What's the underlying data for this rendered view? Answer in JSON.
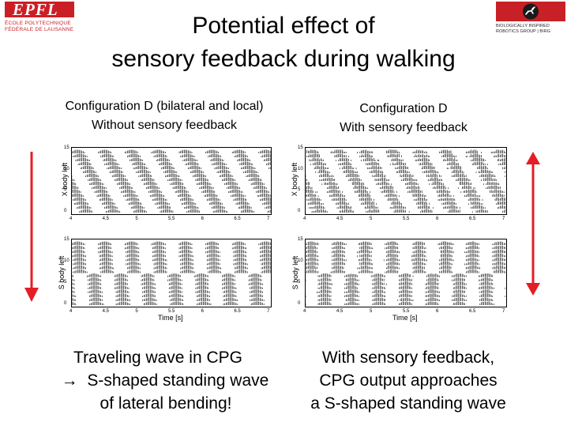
{
  "logos": {
    "left": {
      "mark": "EPFL",
      "line1": "ÉCOLE POLYTECHNIQUE",
      "line2": "FÉDÉRALE DE LAUSANNE"
    },
    "right": {
      "line1": "BIOLOGICALLY INSPIRED",
      "line2": "ROBOTICS GROUP | BIRG"
    }
  },
  "title": {
    "line1": "Potential effect of",
    "line2": "sensory feedback during walking"
  },
  "left_panel": {
    "caption_line1": "Configuration D (bilateral and local)",
    "caption_line2": "Without sensory feedback",
    "top_ylabel": "X body left",
    "bottom_ylabel": "S body left",
    "xlabel": "Time [s]",
    "top_yticks": [
      "15",
      "10",
      "5",
      "0"
    ],
    "top_xticks": [
      "4",
      "4.5",
      "5",
      "5.5",
      "6",
      "6.5",
      "7"
    ],
    "bottom_yticks": [
      "15",
      "10",
      "5",
      "0"
    ],
    "bottom_xticks": [
      "4",
      "4.5",
      "5",
      "5.5",
      "6",
      "6.5",
      "7"
    ]
  },
  "right_panel": {
    "caption_line1": "Configuration D",
    "caption_line2": "With sensory feedback",
    "top_ylabel": "X body left",
    "bottom_ylabel": "S body left",
    "xlabel": "Time [s]",
    "top_yticks": [
      "15",
      "10",
      "5",
      "0"
    ],
    "top_xticks": [
      "4",
      "4.5",
      "5",
      "5.5",
      "6",
      "6.5",
      "7"
    ],
    "bottom_yticks": [
      "15",
      "10",
      "5",
      "0"
    ],
    "bottom_xticks": [
      "4",
      "4.5",
      "5",
      "5.5",
      "6",
      "6.5",
      "7"
    ]
  },
  "bottom_left": {
    "line1": "Traveling wave in CPG",
    "line2": "S-shaped standing wave",
    "line3": "of lateral bending!",
    "arrow_glyph": "→"
  },
  "bottom_right": {
    "line1": "With sensory feedback,",
    "line2": "CPG output approaches",
    "line3": "a S-shaped standing wave"
  },
  "colors": {
    "accent_red": "#e31e24",
    "epfl_red": "#cc1f25"
  }
}
